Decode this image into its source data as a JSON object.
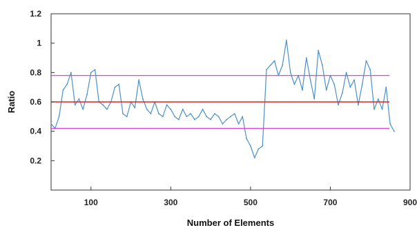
{
  "chart_data": {
    "type": "line",
    "title": "",
    "xlabel": "Number of Elements",
    "ylabel": "Ratio",
    "xlim": [
      0,
      900
    ],
    "ylim": [
      0,
      1.2
    ],
    "xticks": [
      100,
      300,
      500,
      700,
      900
    ],
    "yticks": [
      0.2,
      0.4,
      0.6,
      0.8,
      1,
      1.2
    ],
    "grid": false,
    "legend": "none",
    "colors": {
      "series": "#4a90c8",
      "mean": "#e02020",
      "bounds": "#e040e0"
    },
    "reference_lines": [
      {
        "y": 0.6,
        "color": "#e02020",
        "role": "mean"
      },
      {
        "y": 0.78,
        "color": "#e040e0",
        "role": "upper"
      },
      {
        "y": 0.42,
        "color": "#e040e0",
        "role": "lower"
      }
    ],
    "series": [
      {
        "x": [
          0,
          10,
          20,
          30,
          40,
          50,
          60,
          70,
          80,
          90,
          100,
          110,
          120,
          130,
          140,
          150,
          160,
          170,
          180,
          190,
          200,
          210,
          220,
          230,
          240,
          250,
          260,
          270,
          280,
          290,
          300,
          310,
          320,
          330,
          340,
          350,
          360,
          370,
          380,
          390,
          400,
          410,
          420,
          430,
          440,
          450,
          460,
          470,
          480,
          490,
          500,
          510,
          520,
          530,
          540,
          550,
          560,
          570,
          580,
          590,
          600,
          610,
          620,
          630,
          640,
          650,
          660,
          670,
          680,
          690,
          700,
          710,
          720,
          730,
          740,
          750,
          760,
          770,
          780,
          790,
          800,
          810,
          820,
          830,
          840,
          850,
          860
        ],
        "y": [
          0.45,
          0.42,
          0.5,
          0.68,
          0.72,
          0.8,
          0.58,
          0.62,
          0.55,
          0.65,
          0.8,
          0.82,
          0.6,
          0.58,
          0.55,
          0.6,
          0.7,
          0.72,
          0.52,
          0.5,
          0.6,
          0.56,
          0.75,
          0.62,
          0.55,
          0.52,
          0.6,
          0.52,
          0.5,
          0.58,
          0.55,
          0.5,
          0.48,
          0.55,
          0.5,
          0.52,
          0.48,
          0.5,
          0.55,
          0.5,
          0.48,
          0.52,
          0.5,
          0.45,
          0.48,
          0.5,
          0.52,
          0.45,
          0.5,
          0.35,
          0.3,
          0.22,
          0.28,
          0.3,
          0.82,
          0.85,
          0.88,
          0.78,
          0.85,
          1.02,
          0.8,
          0.72,
          0.78,
          0.68,
          0.9,
          0.75,
          0.62,
          0.95,
          0.85,
          0.68,
          0.78,
          0.72,
          0.58,
          0.66,
          0.8,
          0.7,
          0.75,
          0.58,
          0.72,
          0.88,
          0.82,
          0.55,
          0.62,
          0.55,
          0.7,
          0.45,
          0.4
        ]
      }
    ]
  }
}
